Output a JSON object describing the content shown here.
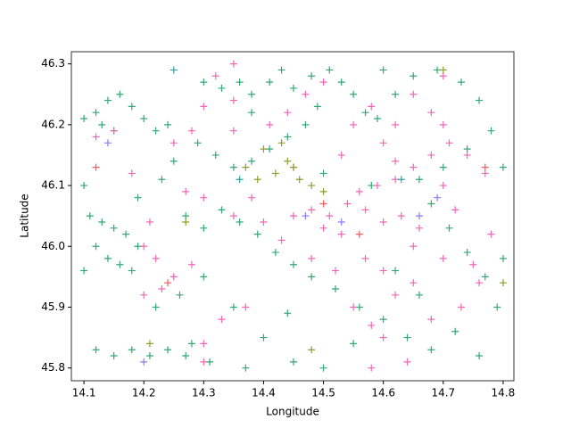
{
  "chart_data": {
    "type": "scatter",
    "x_label": "Longitude",
    "y_label": "Latitude",
    "xlim": [
      14.079,
      14.818
    ],
    "ylim": [
      45.779,
      46.32
    ],
    "xticks": [
      14.1,
      14.2,
      14.3,
      14.4,
      14.5,
      14.6,
      14.7,
      14.8
    ],
    "yticks": [
      45.8,
      45.9,
      {
        "value": 46.0,
        "label": "46.0"
      },
      46.1,
      46.2,
      46.3
    ],
    "grid": false,
    "marker": "+",
    "series": [
      {
        "color": "#33a874",
        "x": [
          14.1,
          14.12,
          14.14,
          14.16,
          14.18,
          14.2,
          14.22,
          14.24,
          14.13,
          14.15,
          14.11,
          14.13,
          14.15,
          14.17,
          14.19,
          14.12,
          14.14,
          14.16,
          14.18,
          14.1,
          14.15,
          14.18,
          14.21,
          14.24,
          14.27,
          14.12,
          14.31,
          14.37,
          14.45,
          14.5,
          14.3,
          14.33,
          14.36,
          14.38,
          14.41,
          14.43,
          14.45,
          14.48,
          14.51,
          14.53,
          14.55,
          14.57,
          14.49,
          14.47,
          14.44,
          14.41,
          14.38,
          14.35,
          14.32,
          14.29,
          14.27,
          14.3,
          14.33,
          14.36,
          14.39,
          14.42,
          14.45,
          14.48,
          14.52,
          14.56,
          14.6,
          14.64,
          14.68,
          14.72,
          14.76,
          14.79,
          14.77,
          14.74,
          14.71,
          14.68,
          14.66,
          14.7,
          14.74,
          14.78,
          14.76,
          14.73,
          14.69,
          14.65,
          14.62,
          14.59,
          14.44,
          14.35,
          14.3,
          14.26,
          14.22,
          14.4,
          14.55,
          14.62,
          14.58,
          14.5,
          14.19,
          14.23,
          14.25,
          14.1,
          14.8,
          14.8,
          14.66,
          14.38,
          14.6,
          14.28
        ],
        "y": [
          46.21,
          46.22,
          46.24,
          46.25,
          46.23,
          46.21,
          46.19,
          46.2,
          46.2,
          46.19,
          46.05,
          46.04,
          46.03,
          46.02,
          46.0,
          46.0,
          45.98,
          45.97,
          45.96,
          45.96,
          45.82,
          45.83,
          45.82,
          45.83,
          45.82,
          45.83,
          45.81,
          45.8,
          45.81,
          45.8,
          46.27,
          46.26,
          46.27,
          46.25,
          46.27,
          46.29,
          46.26,
          46.28,
          46.29,
          46.27,
          46.25,
          46.22,
          46.23,
          46.2,
          46.18,
          46.16,
          46.14,
          46.13,
          46.15,
          46.17,
          46.05,
          46.03,
          46.06,
          46.04,
          46.02,
          45.99,
          45.97,
          45.95,
          45.93,
          45.9,
          45.88,
          45.85,
          45.83,
          45.86,
          45.82,
          45.9,
          45.95,
          45.99,
          46.03,
          46.07,
          46.11,
          46.13,
          46.16,
          46.19,
          46.24,
          46.27,
          46.29,
          46.28,
          46.25,
          46.21,
          45.89,
          45.9,
          45.95,
          45.92,
          45.9,
          45.85,
          45.84,
          45.96,
          46.1,
          46.12,
          46.08,
          46.11,
          46.14,
          46.1,
          46.13,
          45.98,
          45.92,
          46.22,
          46.29,
          45.84
        ]
      },
      {
        "color": "#f067b5",
        "x": [
          14.45,
          14.48,
          14.51,
          14.54,
          14.57,
          14.6,
          14.63,
          14.66,
          14.5,
          14.53,
          14.56,
          14.59,
          14.62,
          14.65,
          14.68,
          14.71,
          14.74,
          14.77,
          14.7,
          14.72,
          14.6,
          14.62,
          14.58,
          14.65,
          14.68,
          14.7,
          14.5,
          14.47,
          14.44,
          14.41,
          14.32,
          14.35,
          14.3,
          14.28,
          14.25,
          14.35,
          14.38,
          14.35,
          14.3,
          14.27,
          14.2,
          14.22,
          14.25,
          14.28,
          14.23,
          14.2,
          14.37,
          14.33,
          14.3,
          14.3,
          14.55,
          14.58,
          14.6,
          14.62,
          14.65,
          14.6,
          14.57,
          14.65,
          14.7,
          14.75,
          14.78,
          14.76,
          14.73,
          14.68,
          14.52,
          14.48,
          14.43,
          14.4,
          14.15,
          14.12,
          14.18,
          14.21,
          14.55,
          14.62,
          14.45,
          14.53,
          14.35,
          14.7,
          14.64,
          14.58
        ],
        "y": [
          46.05,
          46.06,
          46.05,
          46.07,
          46.06,
          46.04,
          46.05,
          46.03,
          46.03,
          46.02,
          46.09,
          46.1,
          46.11,
          46.13,
          46.15,
          46.17,
          46.15,
          46.12,
          46.1,
          46.06,
          46.17,
          46.2,
          46.23,
          46.25,
          46.22,
          46.2,
          46.27,
          46.25,
          46.22,
          46.2,
          46.28,
          46.3,
          46.23,
          46.19,
          46.17,
          46.19,
          46.08,
          46.05,
          46.08,
          46.09,
          46.0,
          45.98,
          45.95,
          45.97,
          45.93,
          45.92,
          45.9,
          45.88,
          45.84,
          45.81,
          45.9,
          45.87,
          45.85,
          45.92,
          45.94,
          45.96,
          45.98,
          46.0,
          45.98,
          45.97,
          46.02,
          45.94,
          45.9,
          45.88,
          45.96,
          45.98,
          46.01,
          46.04,
          46.19,
          46.18,
          46.12,
          46.04,
          46.2,
          46.14,
          46.13,
          46.15,
          46.24,
          46.28,
          45.81,
          45.8
        ]
      },
      {
        "color": "#8c9e2b",
        "x": [
          14.42,
          14.44,
          14.46,
          14.4,
          14.43,
          14.48,
          14.45,
          14.39,
          14.5,
          14.37,
          14.27,
          14.21,
          14.7,
          14.48,
          14.8
        ],
        "y": [
          46.12,
          46.14,
          46.11,
          46.16,
          46.17,
          46.1,
          46.13,
          46.11,
          46.09,
          46.13,
          46.04,
          45.84,
          46.29,
          45.83,
          45.94
        ]
      },
      {
        "color": "#f45d5d",
        "x": [
          14.24,
          14.77,
          14.5,
          14.12,
          14.56
        ],
        "y": [
          45.94,
          46.13,
          46.07,
          46.13,
          46.02
        ]
      },
      {
        "color": "#8a7cf4",
        "x": [
          14.14,
          14.47,
          14.66,
          14.2,
          14.69,
          14.53
        ],
        "y": [
          46.17,
          46.05,
          46.05,
          45.81,
          46.08,
          46.04
        ]
      },
      {
        "color": "#32a3a1",
        "x": [
          14.25,
          14.63,
          14.36
        ],
        "y": [
          46.29,
          46.11,
          46.11
        ]
      }
    ]
  }
}
